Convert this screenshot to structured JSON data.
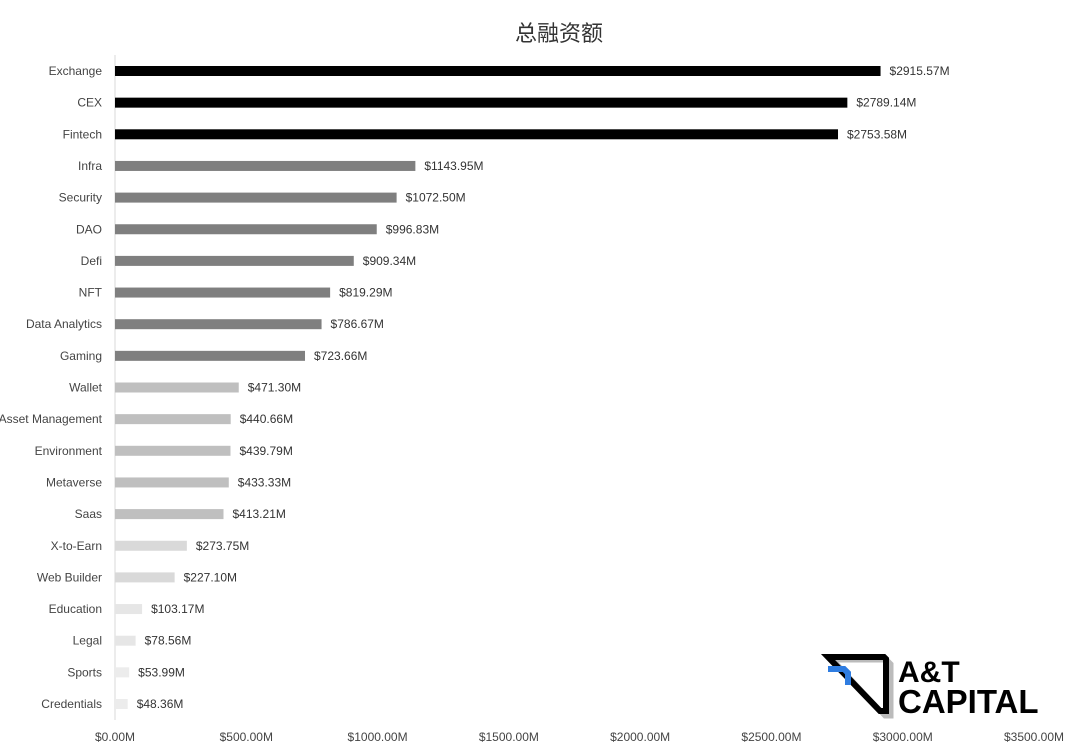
{
  "chart_data": {
    "type": "bar",
    "orientation": "horizontal",
    "title": "总融资额",
    "xlabel": "",
    "ylabel": "",
    "xlim": [
      0,
      3500
    ],
    "grid": false,
    "x_ticks": [
      "$0.00M",
      "$500.00M",
      "$1000.00M",
      "$1500.00M",
      "$2000.00M",
      "$2500.00M",
      "$3000.00M",
      "$3500.00M"
    ],
    "x_tick_values": [
      0,
      500,
      1000,
      1500,
      2000,
      2500,
      3000,
      3500
    ],
    "categories": [
      "Exchange",
      "CEX",
      "Fintech",
      "Infra",
      "Security",
      "DAO",
      "Defi",
      "NFT",
      "Data Analytics",
      "Gaming",
      "Wallet",
      "Asset Management",
      "Environment",
      "Metaverse",
      "Saas",
      "X-to-Earn",
      "Web Builder",
      "Education",
      "Legal",
      "Sports",
      "Credentials"
    ],
    "values": [
      2915.57,
      2789.14,
      2753.58,
      1143.95,
      1072.5,
      996.83,
      909.34,
      819.29,
      786.67,
      723.66,
      471.3,
      440.66,
      439.79,
      433.33,
      413.21,
      273.75,
      227.1,
      103.17,
      78.56,
      53.99,
      48.36
    ],
    "data_labels": [
      "$2915.57M",
      "$2789.14M",
      "$2753.58M",
      "$1143.95M",
      "$1072.50M",
      "$996.83M",
      "$909.34M",
      "$819.29M",
      "$786.67M",
      "$723.66M",
      "$471.30M",
      "$440.66M",
      "$439.79M",
      "$433.33M",
      "$413.21M",
      "$273.75M",
      "$227.10M",
      "$103.17M",
      "$78.56M",
      "$53.99M",
      "$48.36M"
    ],
    "bar_colors": [
      "#000000",
      "#000000",
      "#000000",
      "#7f7f7f",
      "#7f7f7f",
      "#7f7f7f",
      "#7f7f7f",
      "#7f7f7f",
      "#7f7f7f",
      "#7f7f7f",
      "#bfbfbf",
      "#bfbfbf",
      "#bfbfbf",
      "#bfbfbf",
      "#bfbfbf",
      "#d9d9d9",
      "#d9d9d9",
      "#e6e6e6",
      "#e6e6e6",
      "#ececec",
      "#ececec"
    ]
  },
  "logo": {
    "line1": "A&T",
    "line2": "CAPITAL",
    "accent": "#2f7de1"
  }
}
